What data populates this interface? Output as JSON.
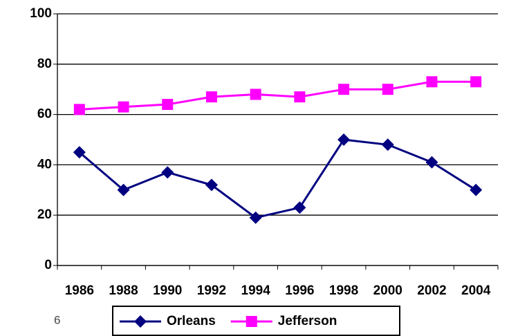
{
  "chart_data": {
    "type": "line",
    "categories": [
      "1986",
      "1988",
      "1990",
      "1992",
      "1994",
      "1996",
      "1998",
      "2000",
      "2002",
      "2004"
    ],
    "series": [
      {
        "name": "Orleans",
        "color": "#000080",
        "marker": "diamond",
        "values": [
          45,
          30,
          37,
          32,
          19,
          23,
          50,
          48,
          41,
          30
        ]
      },
      {
        "name": "Jefferson",
        "color": "#ff00ff",
        "marker": "square",
        "values": [
          62,
          63,
          64,
          67,
          68,
          67,
          70,
          70,
          73,
          73
        ]
      }
    ],
    "ylim": [
      0,
      100
    ],
    "yticks": [
      0,
      20,
      40,
      60,
      80,
      100
    ],
    "grid": true,
    "legend": "bottom",
    "annotation": "6"
  }
}
